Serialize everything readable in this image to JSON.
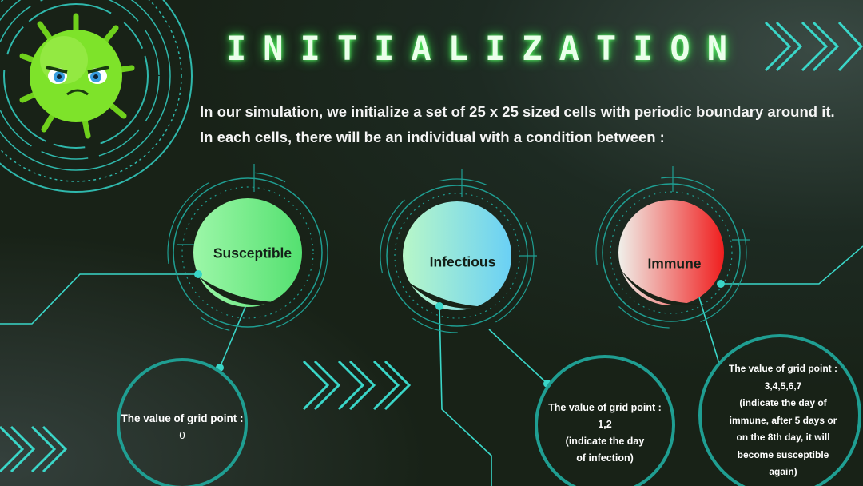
{
  "title": "INITIALIZATION",
  "intro": {
    "line1": "In our simulation, we initialize  a set of 25 x 25 sized cells with periodic boundary around it.",
    "line2": "In each cells, there will be an individual with a condition between :"
  },
  "states": [
    {
      "label": "Susceptible",
      "color_start": "#9cf7a8",
      "color_end": "#54e070",
      "heading": "The value of grid point :",
      "value": "0",
      "note": []
    },
    {
      "label": "Infectious",
      "color_start": "#b8f7c8",
      "color_end": "#6ad0f5",
      "heading": "The value of grid point :",
      "value": "1,2",
      "note": [
        "(indicate the day",
        "of infection)"
      ]
    },
    {
      "label": "Immune",
      "color_start": "#f0f0ea",
      "color_end": "#f01e1e",
      "heading": "The value of grid point :",
      "value": "3,4,5,6,7",
      "note": [
        "(indicate the day of",
        "immune, after 5 days or",
        "on the 8th day, it will",
        "become susceptible",
        "again)"
      ]
    }
  ],
  "colors": {
    "accent_teal": "#3ad6c8",
    "ring_teal": "#1f8e84",
    "background": "#182217",
    "virus_green": "#7ee32a"
  }
}
